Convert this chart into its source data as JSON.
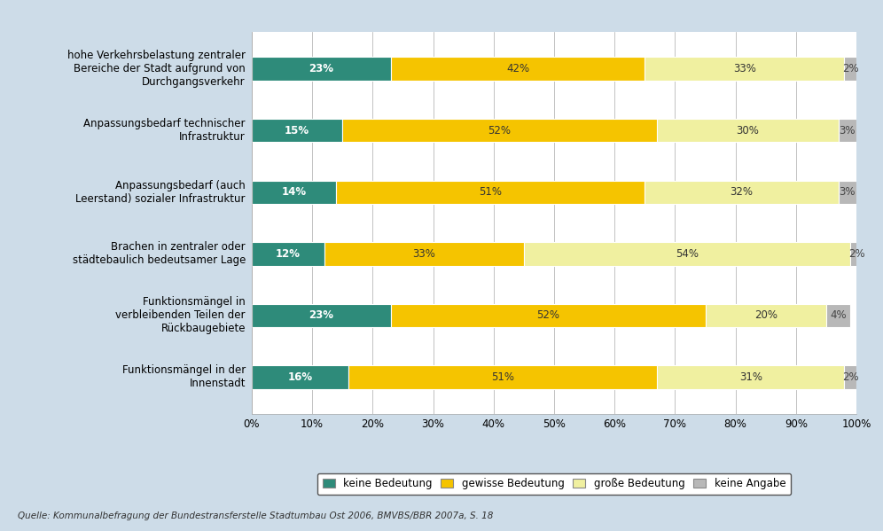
{
  "categories": [
    "hohe Verkehrsbelastung zentraler\nBereiche der Stadt aufgrund von\nDurchgangsverkehr",
    "Anpassungsbedarf technischer\nInfrastruktur",
    "Anpassungsbedarf (auch\nLeerstand) sozialer Infrastruktur",
    "Brachen in zentraler oder\nstädtebaulich bedeutsamer Lage",
    "Funktionsmängel in\nverbleibenden Teilen der\nRückbaugebiete",
    "Funktionsmängel in der\nInnenstadt"
  ],
  "series": {
    "keine Bedeutung": [
      23,
      15,
      14,
      12,
      23,
      16
    ],
    "gewisse Bedeutung": [
      42,
      52,
      51,
      33,
      52,
      51
    ],
    "große Bedeutung": [
      33,
      30,
      32,
      54,
      20,
      31
    ],
    "keine Angabe": [
      2,
      3,
      3,
      2,
      4,
      2
    ]
  },
  "colors": {
    "keine Bedeutung": "#2e8b7a",
    "gewisse Bedeutung": "#f5c400",
    "große Bedeutung": "#f0f0a0",
    "keine Angabe": "#b8b8b8"
  },
  "legend_order": [
    "keine Bedeutung",
    "gewisse Bedeutung",
    "große Bedeutung",
    "keine Angabe"
  ],
  "background_color": "#cddce8",
  "plot_background": "#ffffff",
  "source_text": "Quelle: Kommunalbefragung der Bundestransferstelle Stadtumbau Ost 2006, BMVBS/BBR 2007a, S. 18",
  "bar_height": 0.38,
  "xlim": [
    0,
    100
  ]
}
